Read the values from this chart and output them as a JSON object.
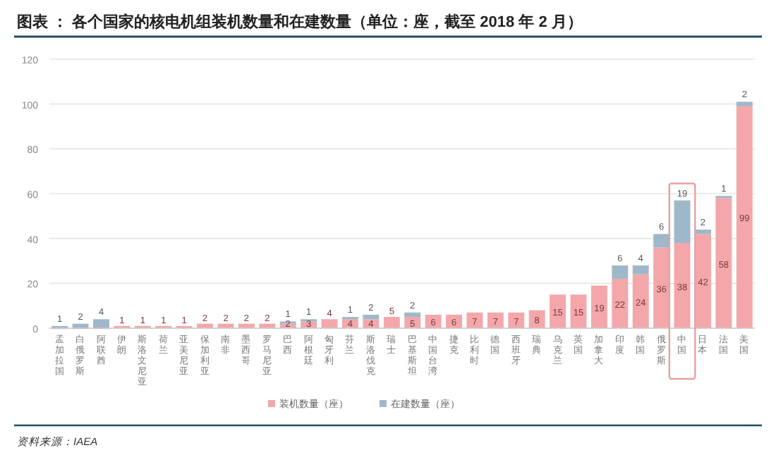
{
  "chart_data": {
    "type": "bar",
    "stacked": true,
    "title": "图表 ： 各个国家的核电机组装机数量和在建数量（单位：座，截至 2018 年 2 月）",
    "categories": [
      "孟加拉国",
      "白俄罗斯",
      "阿联酋",
      "伊朗",
      "斯洛文尼亚",
      "荷兰",
      "亚美尼亚",
      "保加利亚",
      "南非",
      "墨西哥",
      "罗马尼亚",
      "巴西",
      "阿根廷",
      "匈牙利",
      "芬兰",
      "斯洛伐克",
      "瑞士",
      "巴基斯坦",
      "中国台湾",
      "捷克",
      "比利时",
      "德国",
      "西班牙",
      "瑞典",
      "乌克兰",
      "英国",
      "加拿大",
      "印度",
      "韩国",
      "俄罗斯",
      "中国",
      "日本",
      "法国",
      "美国"
    ],
    "series": [
      {
        "name": "装机数量（座）",
        "color": "#f4a7aa",
        "values": [
          0,
          0,
          0,
          1,
          1,
          1,
          1,
          2,
          2,
          2,
          2,
          2,
          3,
          4,
          4,
          4,
          5,
          5,
          6,
          6,
          7,
          7,
          7,
          8,
          15,
          15,
          19,
          22,
          24,
          36,
          38,
          42,
          58,
          99
        ],
        "value_labels": [
          null,
          null,
          null,
          "1",
          "1",
          "1",
          "1",
          "2",
          "2",
          "2",
          "2",
          "2",
          "3",
          "4",
          "4",
          "4",
          "5",
          "5",
          "6",
          "6",
          "7",
          "7",
          "7",
          "8",
          "15",
          "15",
          "19",
          "22",
          "24",
          "36",
          "38",
          "42",
          "58",
          "99"
        ]
      },
      {
        "name": "在建数量（座）",
        "color": "#9fb8c9",
        "values": [
          1,
          2,
          4,
          null,
          null,
          null,
          null,
          null,
          null,
          null,
          null,
          1,
          1,
          null,
          1,
          2,
          null,
          2,
          null,
          null,
          null,
          null,
          null,
          null,
          null,
          null,
          null,
          6,
          4,
          6,
          19,
          2,
          1,
          2
        ],
        "value_labels": [
          "1",
          "2",
          "4",
          null,
          null,
          null,
          null,
          null,
          null,
          null,
          null,
          "1",
          "1",
          null,
          "1",
          "2",
          null,
          "2",
          null,
          null,
          null,
          null,
          null,
          null,
          null,
          null,
          null,
          "6",
          "4",
          "6",
          "19",
          "2",
          "1",
          "2"
        ]
      }
    ],
    "ylim": [
      0,
      120
    ],
    "yticks": [
      0,
      20,
      40,
      60,
      80,
      100,
      120
    ],
    "grid": "y",
    "legend": "bottom",
    "annotations": [
      "资料来源：IAEA"
    ]
  }
}
